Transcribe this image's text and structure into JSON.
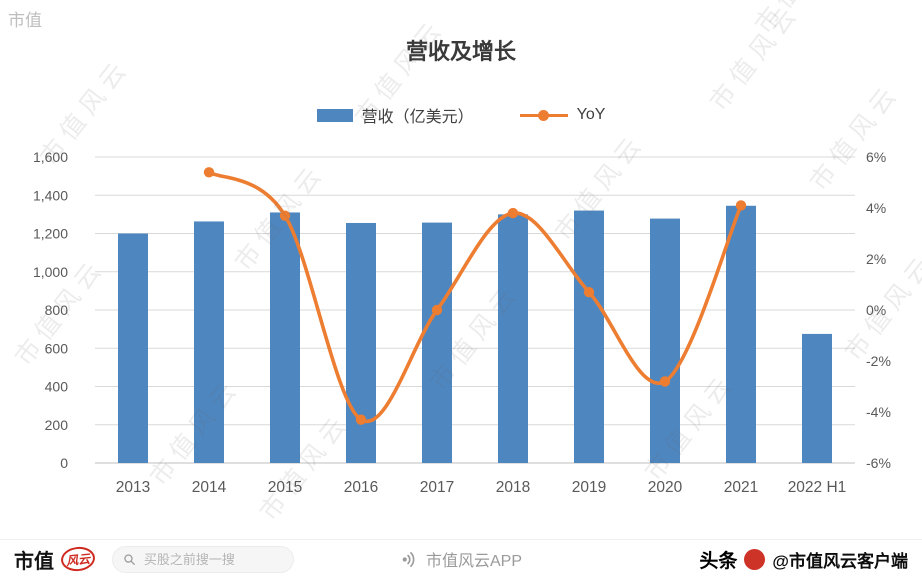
{
  "watermark": {
    "text": "市值风云",
    "corner_text": "市值"
  },
  "chart_data": {
    "type": "bar",
    "combo": "bar+line",
    "title": "营收及增长",
    "categories": [
      "2013",
      "2014",
      "2015",
      "2016",
      "2017",
      "2018",
      "2019",
      "2020",
      "2021",
      "2022 H1"
    ],
    "series": [
      {
        "name": "营收（亿美元）",
        "chart": "bar",
        "color": "#4E86C0",
        "y_axis": "left",
        "values": [
          1200,
          1263,
          1310,
          1255,
          1257,
          1300,
          1320,
          1278,
          1345,
          675
        ]
      },
      {
        "name": "YoY",
        "chart": "line",
        "color": "#ED7D31",
        "y_axis": "right",
        "start_index": 1,
        "values": [
          5.4,
          3.7,
          -4.3,
          0.0,
          3.8,
          0.7,
          -2.8,
          4.1
        ]
      }
    ],
    "left_axis": {
      "min": 0,
      "max": 1600,
      "step": 200,
      "tick_labels": [
        "0",
        "200",
        "400",
        "600",
        "800",
        "1,000",
        "1,200",
        "1,400",
        "1,600"
      ]
    },
    "right_axis": {
      "min": -6,
      "max": 6,
      "step": 2,
      "tick_labels": [
        "-6%",
        "-4%",
        "-2%",
        "0%",
        "2%",
        "4%",
        "6%"
      ]
    },
    "grid": true,
    "legend_position": "top"
  },
  "footer": {
    "logo_text": "市值",
    "logo_badge": "风云",
    "search_placeholder": "买股之前搜一搜",
    "center_label": "市值风云APP",
    "right_brand": "头条",
    "right_handle": "@市值风云客户端"
  }
}
